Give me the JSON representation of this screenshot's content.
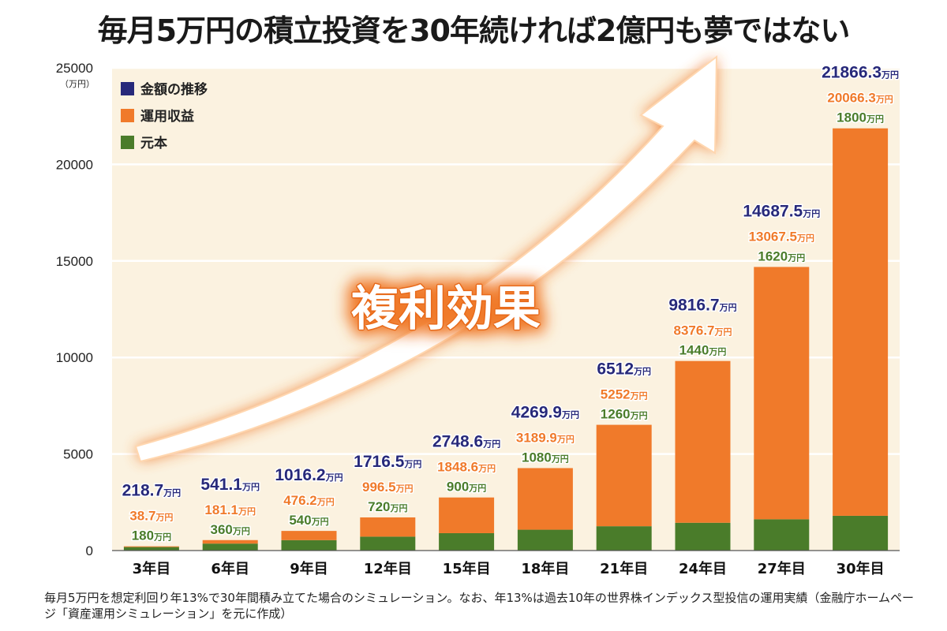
{
  "title": "毎月5万円の積立投資を30年続ければ2億円も夢ではない",
  "footnote": "毎月5万円を想定利回り年13%で30年間積み立てた場合のシミュレーション。なお、年13%は過去10年の世界株インデックス型投信の運用実績（金融庁ホームページ「資産運用シミュレーション」を元に作成）",
  "banner_text": "複利効果",
  "colors": {
    "total": "#27297a",
    "gain": "#f07a2a",
    "principal": "#4a7c2a",
    "background": "#fbf2e0"
  },
  "chart_data": {
    "type": "bar",
    "stacked": true,
    "categories": [
      "3年目",
      "6年目",
      "9年目",
      "12年目",
      "15年目",
      "18年目",
      "21年目",
      "24年目",
      "27年目",
      "30年目"
    ],
    "series": [
      {
        "name": "元本",
        "values": [
          180,
          360,
          540,
          720,
          900,
          1080,
          1260,
          1440,
          1620,
          1800
        ]
      },
      {
        "name": "運用収益",
        "values": [
          38.7,
          181.1,
          476.2,
          996.5,
          1848.6,
          3189.9,
          5252,
          8376.7,
          13067.5,
          20066.3
        ]
      }
    ],
    "totals_name": "金額の推移",
    "totals": [
      218.7,
      541.1,
      1016.2,
      1716.5,
      2748.6,
      4269.9,
      6512,
      9816.7,
      14687.5,
      21866.3
    ],
    "value_unit": "万円",
    "y_axis_unit_label": "（万円）",
    "ylim": [
      0,
      25000
    ],
    "yticks": [
      0,
      5000,
      10000,
      15000,
      20000,
      25000
    ],
    "grid": true,
    "legend_position": "top-left",
    "legend_order": [
      "金額の推移",
      "運用収益",
      "元本"
    ]
  }
}
